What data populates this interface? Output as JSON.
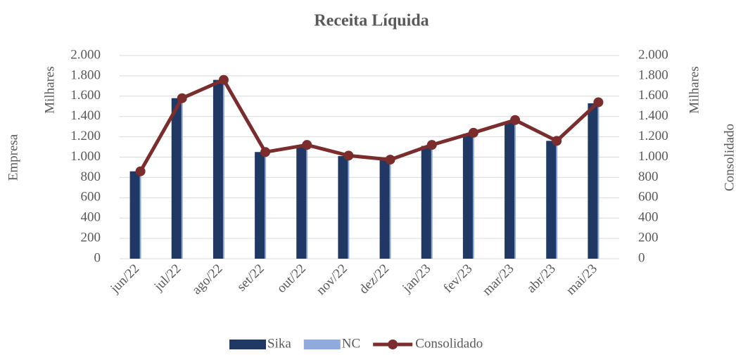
{
  "chart_data": {
    "type": "bar_line",
    "title": "Receita Líquida",
    "y_label": "Empresa",
    "y_unit_label": "Milhares",
    "y2_label": "Consolidado",
    "y2_unit_label": "Milhares",
    "categories": [
      "jun/22",
      "jul/22",
      "ago/22",
      "set/22",
      "out/22",
      "nov/22",
      "dez/22",
      "jan/23",
      "fev/23",
      "mar/23",
      "abr/23",
      "mai/23"
    ],
    "series": [
      {
        "name": "Sika",
        "type": "bar",
        "color": "#203864",
        "values": [
          860,
          1580,
          1760,
          1050,
          1120,
          1010,
          970,
          1110,
          1230,
          1350,
          1160,
          1530
        ]
      },
      {
        "name": "NC",
        "type": "bar",
        "color": "#8faadc",
        "values": [
          860,
          1580,
          1760,
          1050,
          1120,
          1010,
          970,
          1110,
          1230,
          1350,
          1160,
          1530
        ]
      },
      {
        "name": "Consolidado",
        "type": "line",
        "axis": "y2",
        "color": "#7b2c2c",
        "values": [
          860,
          1580,
          1760,
          1050,
          1120,
          1015,
          975,
          1120,
          1240,
          1365,
          1160,
          1540
        ]
      }
    ],
    "ylim": [
      0,
      2000
    ],
    "yticks": [
      0,
      200,
      400,
      600,
      800,
      {
        "value": 1000,
        "label": "1.000"
      },
      {
        "value": 1200,
        "label": "1.200"
      },
      {
        "value": 1400,
        "label": "1.400"
      },
      {
        "value": 1600,
        "label": "1.600"
      },
      {
        "value": 1800,
        "label": "1.800"
      },
      {
        "value": 2000,
        "label": "2.000"
      }
    ],
    "y2lim": [
      0,
      2000
    ],
    "y2ticks": [
      0,
      200,
      400,
      600,
      800,
      {
        "value": 1000,
        "label": "1.000"
      },
      {
        "value": 1200,
        "label": "1.200"
      },
      {
        "value": 1400,
        "label": "1.400"
      },
      {
        "value": 1600,
        "label": "1.600"
      },
      {
        "value": 1800,
        "label": "1.800"
      },
      {
        "value": 2000,
        "label": "2.000"
      }
    ],
    "grid": true,
    "legend": "bottom"
  }
}
